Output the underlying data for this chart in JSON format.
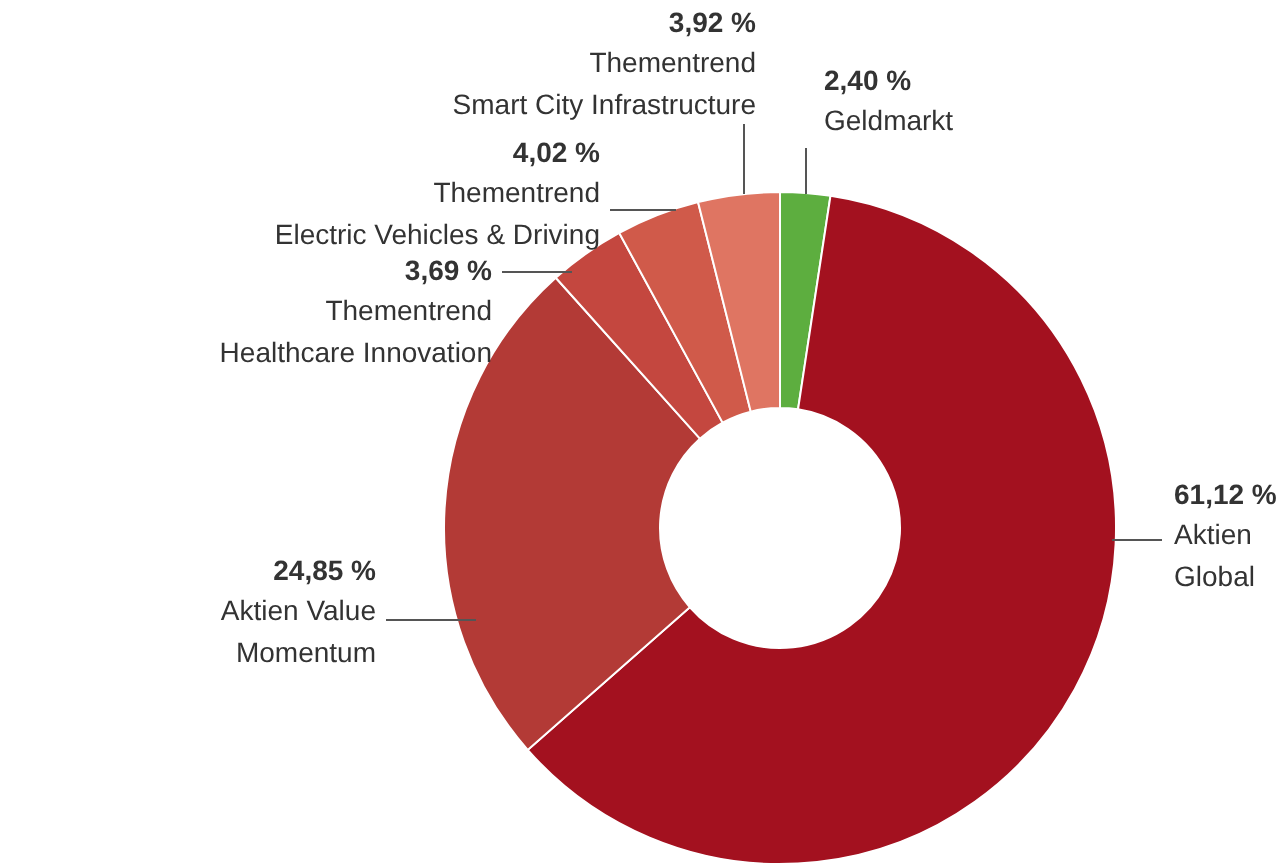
{
  "chart_data": {
    "type": "donut",
    "categories": [
      "Geldmarkt",
      "Aktien Global",
      "Aktien Value Momentum",
      "Thementrend Healthcare Innovation",
      "Thementrend Electric Vehicles & Driving",
      "Thementrend Smart City Infrastructure"
    ],
    "values": [
      2.4,
      61.12,
      24.85,
      3.69,
      4.02,
      3.92
    ],
    "colors": [
      "#5dae3f",
      "#a3111f",
      "#b33a36",
      "#c4473f",
      "#d05a4a",
      "#df7562"
    ],
    "value_labels": [
      "2,40 %",
      "61,12 %",
      "24,85 %",
      "3,69 %",
      "4,02 %",
      "3,92 %"
    ]
  }
}
